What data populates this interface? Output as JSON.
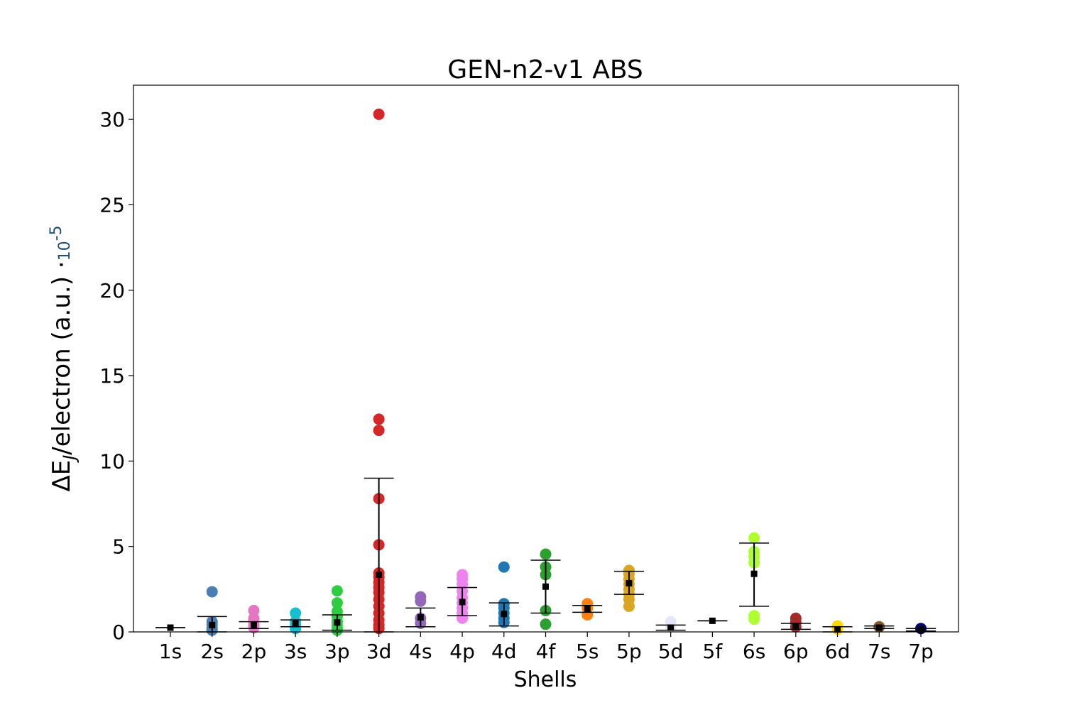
{
  "chart_data": {
    "type": "scatter",
    "title": "GEN-n2-v1 ABS",
    "xlabel": "Shells",
    "ylabel_main": "ΔE",
    "ylabel_sub": "J",
    "ylabel_rest": "/electron (a.u.) ·",
    "ylabel_exp_base": "10",
    "ylabel_exp_power": "-5",
    "ylim": [
      0,
      32
    ],
    "yticks": [
      0,
      5,
      10,
      15,
      20,
      25,
      30
    ],
    "grid": false,
    "categories": [
      "1s",
      "2s",
      "2p",
      "3s",
      "3p",
      "3d",
      "4s",
      "4p",
      "4d",
      "4f",
      "5s",
      "5p",
      "5d",
      "5f",
      "6s",
      "6p",
      "6d",
      "7s",
      "7p"
    ],
    "series": [
      {
        "category": "1s",
        "color": "#1f3a93",
        "points": [],
        "mean": 0.25,
        "err_low": 0.25,
        "err_high": 0.25
      },
      {
        "category": "2s",
        "color": "#4a7fb5",
        "points": [
          2.35,
          0.6,
          0.4,
          0.2,
          0.1
        ],
        "mean": 0.4,
        "err_low": 0.0,
        "err_high": 0.9
      },
      {
        "category": "2p",
        "color": "#e377c2",
        "points": [
          1.25,
          0.8,
          0.6,
          0.4,
          0.25
        ],
        "mean": 0.4,
        "err_low": 0.2,
        "err_high": 0.6
      },
      {
        "category": "3s",
        "color": "#17becf",
        "points": [
          1.1,
          0.6,
          0.4,
          0.2
        ],
        "mean": 0.5,
        "err_low": 0.3,
        "err_high": 0.7
      },
      {
        "category": "3p",
        "color": "#2ecc40",
        "points": [
          2.4,
          1.7,
          1.2,
          0.9,
          0.6,
          0.4,
          0.2,
          0.1
        ],
        "mean": 0.55,
        "err_low": 0.1,
        "err_high": 1.0
      },
      {
        "category": "3d",
        "color": "#d62728",
        "points": [
          30.3,
          12.45,
          11.8,
          7.8,
          5.1,
          3.45,
          3.2,
          2.9,
          2.6,
          2.3,
          1.9,
          1.5,
          1.1,
          0.7,
          0.4,
          0.2
        ],
        "mean": 3.35,
        "err_low": 0.0,
        "err_high": 9.0
      },
      {
        "category": "4s",
        "color": "#9467bd",
        "points": [
          2.05,
          1.8,
          0.8,
          0.5
        ],
        "mean": 0.85,
        "err_low": 0.3,
        "err_high": 1.4
      },
      {
        "category": "4p",
        "color": "#ee82ee",
        "points": [
          3.35,
          3.1,
          2.8,
          2.4,
          2.0,
          1.7,
          1.4,
          1.1,
          0.8
        ],
        "mean": 1.75,
        "err_low": 0.95,
        "err_high": 2.6
      },
      {
        "category": "4d",
        "color": "#1f77b4",
        "points": [
          3.8,
          1.65,
          1.4,
          1.1,
          0.8,
          0.55
        ],
        "mean": 1.05,
        "err_low": 0.35,
        "err_high": 1.7
      },
      {
        "category": "4f",
        "color": "#2ca02c",
        "points": [
          4.55,
          3.8,
          3.35,
          1.25,
          0.45
        ],
        "mean": 2.65,
        "err_low": 1.1,
        "err_high": 4.2
      },
      {
        "category": "5s",
        "color": "#ff7f0e",
        "points": [
          1.65,
          1.4,
          1.0
        ],
        "mean": 1.35,
        "err_low": 1.15,
        "err_high": 1.55
      },
      {
        "category": "5p",
        "color": "#daa520",
        "points": [
          3.6,
          3.4,
          3.1,
          2.8,
          2.5,
          2.2,
          1.9,
          1.5
        ],
        "mean": 2.85,
        "err_low": 2.2,
        "err_high": 3.55
      },
      {
        "category": "5d",
        "color": "#e6e6fa",
        "points": [
          0.6,
          0.3
        ],
        "mean": 0.25,
        "err_low": 0.1,
        "err_high": 0.4
      },
      {
        "category": "5f",
        "color": "#000000",
        "points": [],
        "mean": 0.65,
        "err_low": 0.65,
        "err_high": 0.65
      },
      {
        "category": "6s",
        "color": "#adff2f",
        "points": [
          5.5,
          4.7,
          4.4,
          4.05,
          0.95,
          0.75
        ],
        "mean": 3.4,
        "err_low": 1.5,
        "err_high": 5.2
      },
      {
        "category": "6p",
        "color": "#a52a2a",
        "points": [
          0.8,
          0.55,
          0.3
        ],
        "mean": 0.35,
        "err_low": 0.15,
        "err_high": 0.5
      },
      {
        "category": "6d",
        "color": "#ffd700",
        "points": [
          0.35,
          0.15
        ],
        "mean": 0.15,
        "err_low": 0.0,
        "err_high": 0.3
      },
      {
        "category": "7s",
        "color": "#8b5a2b",
        "points": [
          0.3
        ],
        "mean": 0.25,
        "err_low": 0.2,
        "err_high": 0.35
      },
      {
        "category": "7p",
        "color": "#000080",
        "points": [
          0.2
        ],
        "mean": 0.15,
        "err_low": 0.05,
        "err_high": 0.2
      }
    ]
  }
}
